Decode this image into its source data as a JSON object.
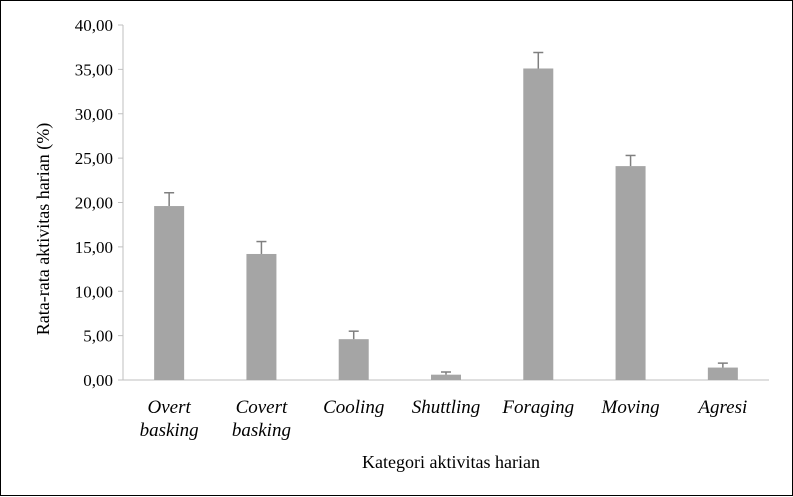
{
  "chart_data": {
    "type": "bar",
    "title": "",
    "xlabel": "Kategori aktivitas harian",
    "ylabel": "Rata-rata aktivitas harian (%)",
    "ylim": [
      0,
      40
    ],
    "yticks": [
      "0,00",
      "5,00",
      "10,00",
      "15,00",
      "20,00",
      "25,00",
      "30,00",
      "35,00",
      "40,00"
    ],
    "categories": [
      [
        "Overt",
        "basking"
      ],
      [
        "Covert",
        "basking"
      ],
      [
        "Cooling"
      ],
      [
        "Shuttling"
      ],
      [
        "Foraging"
      ],
      [
        "Moving"
      ],
      [
        "Agresi"
      ]
    ],
    "values": [
      19.6,
      14.2,
      4.6,
      0.6,
      35.1,
      24.1,
      1.4
    ],
    "error_plus": [
      1.5,
      1.4,
      0.9,
      0.3,
      1.8,
      1.2,
      0.5
    ],
    "grid": false,
    "legend": "none",
    "bar_color": "#a5a5a5",
    "error_color": "#7f7f7f",
    "axis_color": "#bfbfbf"
  }
}
